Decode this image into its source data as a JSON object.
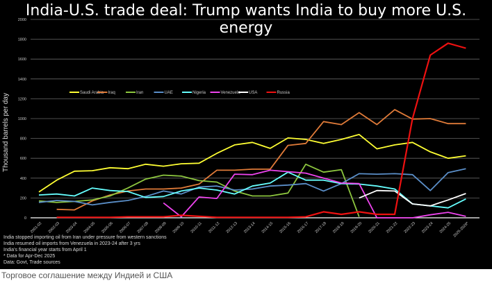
{
  "title": "India-U.S. trade deal: Trump wants India to buy more U.S. energy",
  "caption": "Торговое соглашение между Индией и США",
  "notes": [
    "India stopped importing oil from Iran under pressure from western sanctions",
    "India resumed oil imports from Venezuela in 2023-24 after 3 yrs",
    "India's financial year starts from April 1",
    "* Data for Apr-Dec 2025",
    "Data: Govt, Trade sources"
  ],
  "chart_data": {
    "type": "line",
    "title": "India-U.S. trade deal: Trump wants India to buy more U.S. energy",
    "xlabel": "",
    "ylabel": "Thousand barrels per day",
    "ylim": [
      0,
      2000
    ],
    "yticks": [
      0,
      200,
      400,
      600,
      800,
      1000,
      1200,
      1400,
      1600,
      1800,
      2000
    ],
    "grid": true,
    "legend": "top-left",
    "categories": [
      "2001-02",
      "2002-03",
      "2003-04",
      "2004-05",
      "2005-06",
      "2006-07",
      "2007-08",
      "2008-09",
      "2009-10",
      "2010-11",
      "2011-12",
      "2012-13",
      "2013-14",
      "2014-15",
      "2015-16",
      "2016-17",
      "2017-18",
      "2018-19",
      "2019-20",
      "2020-21",
      "2021-22",
      "2022-23",
      "2023-24",
      "2024-25",
      "2025-2026*"
    ],
    "series": [
      {
        "name": "Saudi Arabia",
        "color": "#ffff33",
        "values": [
          260,
          380,
          470,
          475,
          505,
          495,
          540,
          520,
          545,
          550,
          650,
          735,
          760,
          700,
          805,
          790,
          750,
          790,
          840,
          695,
          735,
          760,
          665,
          600,
          625
        ]
      },
      {
        "name": "Iraq",
        "color": "#e07b39",
        "values": [
          null,
          85,
          80,
          170,
          230,
          270,
          290,
          290,
          300,
          340,
          480,
          480,
          490,
          490,
          730,
          750,
          970,
          940,
          1060,
          940,
          1090,
          995,
          1000,
          950,
          950
        ]
      },
      {
        "name": "Iran",
        "color": "#8dc63f",
        "values": [
          170,
          155,
          165,
          180,
          220,
          300,
          390,
          430,
          420,
          375,
          360,
          270,
          220,
          220,
          250,
          540,
          460,
          485,
          10,
          null,
          null,
          null,
          null,
          null,
          null
        ]
      },
      {
        "name": "UAE",
        "color": "#5b8fc9",
        "values": [
          155,
          175,
          165,
          130,
          155,
          175,
          215,
          270,
          240,
          310,
          320,
          280,
          290,
          320,
          330,
          345,
          270,
          345,
          445,
          440,
          445,
          435,
          275,
          455,
          495
        ]
      },
      {
        "name": "Nigeria",
        "color": "#66ffff",
        "values": [
          230,
          240,
          220,
          300,
          275,
          265,
          205,
          215,
          270,
          300,
          280,
          240,
          320,
          350,
          460,
          380,
          380,
          345,
          340,
          320,
          290,
          140,
          120,
          100,
          190
        ]
      },
      {
        "name": "Venezuela",
        "color": "#ee44ee",
        "values": [
          null,
          null,
          null,
          null,
          null,
          null,
          null,
          150,
          10,
          210,
          195,
          440,
          435,
          480,
          465,
          450,
          400,
          350,
          345,
          0,
          0,
          0,
          30,
          55,
          15
        ]
      },
      {
        "name": "USA",
        "color": "#ffffff",
        "values": [
          null,
          null,
          null,
          null,
          null,
          null,
          null,
          null,
          null,
          null,
          null,
          null,
          null,
          null,
          null,
          null,
          null,
          null,
          200,
          275,
          270,
          140,
          120,
          180,
          245
        ]
      },
      {
        "name": "Russia",
        "color": "#ee1111",
        "values": [
          null,
          5,
          5,
          5,
          5,
          10,
          10,
          10,
          25,
          15,
          5,
          5,
          5,
          5,
          5,
          10,
          60,
          35,
          60,
          35,
          35,
          1000,
          1640,
          1760,
          1710
        ]
      }
    ]
  }
}
